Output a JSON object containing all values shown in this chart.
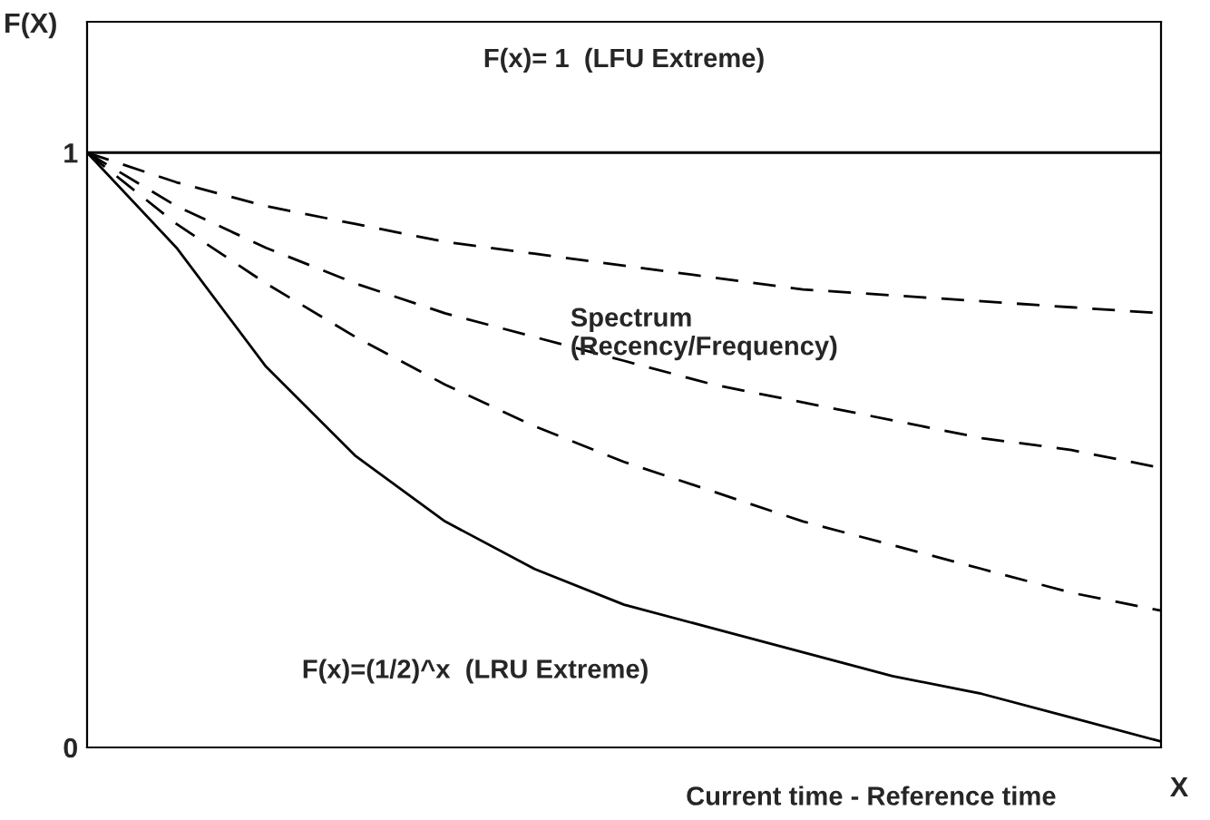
{
  "chart_data": {
    "type": "line",
    "ylabel": "F(X)",
    "xlabel": "X",
    "categories": [
      null,
      null,
      null,
      null,
      null,
      null,
      null,
      null,
      null,
      null,
      null,
      null,
      null
    ],
    "series": [
      {
        "color": "#000000",
        "line_style": "solid",
        "values": [
          1,
          1,
          1,
          1,
          1,
          1,
          1,
          1,
          1,
          1,
          1,
          1,
          1
        ]
      },
      {
        "color": "#000000",
        "line_style": "dashed",
        "values": [
          1,
          0.95,
          0.91,
          0.88,
          0.85,
          0.83,
          0.81,
          0.79,
          0.77,
          0.76,
          0.75,
          0.74,
          0.73
        ]
      },
      {
        "color": "#000000",
        "line_style": "dashed",
        "values": [
          1,
          0.91,
          0.84,
          0.78,
          0.73,
          0.69,
          0.65,
          0.61,
          0.58,
          0.55,
          0.52,
          0.5,
          0.47
        ]
      },
      {
        "color": "#000000",
        "line_style": "dashed",
        "values": [
          1,
          0.88,
          0.78,
          0.69,
          0.61,
          0.54,
          0.48,
          0.43,
          0.38,
          0.34,
          0.3,
          0.26,
          0.23
        ]
      },
      {
        "color": "#000000",
        "line_style": "solid",
        "values": [
          1,
          0.84,
          0.64,
          0.49,
          0.38,
          0.3,
          0.24,
          0.2,
          0.16,
          0.12,
          0.09,
          0.05,
          0.01
        ]
      }
    ],
    "ylim": [
      0,
      1.22
    ],
    "yticks": [
      0,
      1
    ],
    "grid": false,
    "legend": false,
    "marker": "none",
    "annotations": [
      "F(x)= 1  (LFU Extreme)",
      "Spectrum\n(Recency/Frequency)",
      "F(x)=(1/2)^x  (LRU Extreme)",
      "Current time - Reference time"
    ]
  }
}
